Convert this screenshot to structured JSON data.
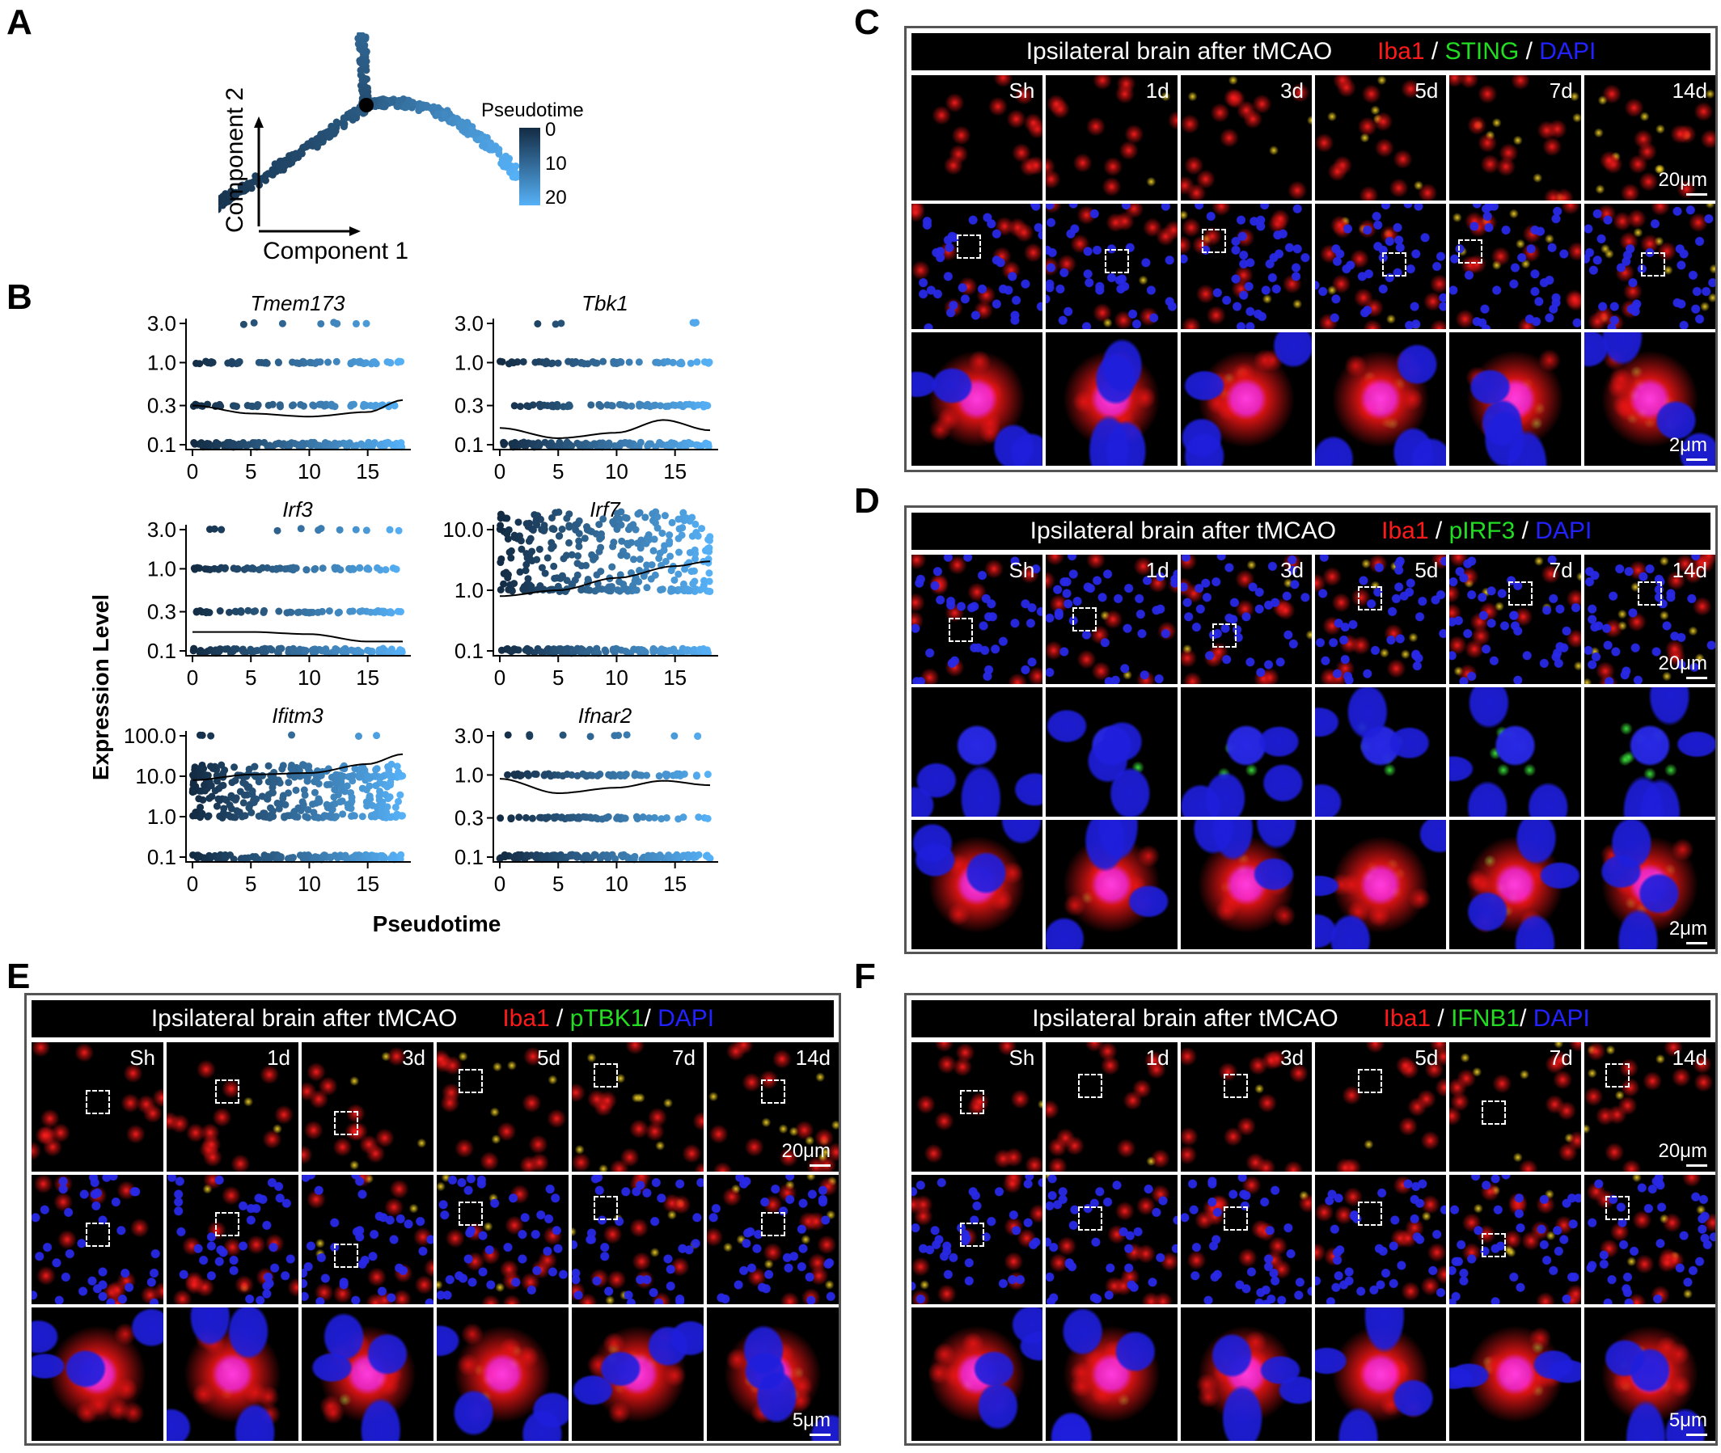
{
  "panel_letters": [
    "A",
    "B",
    "C",
    "D",
    "E",
    "F"
  ],
  "panelA": {
    "xlabel": "Component 1",
    "ylabel": "Component 2",
    "legend_title": "Pseudotime",
    "legend_ticks": [
      "0",
      "10",
      "20"
    ],
    "colors": {
      "dark": "#132b43",
      "light": "#56b1f7"
    }
  },
  "panelB": {
    "ylabel": "Expression Level",
    "xlabel": "Pseudotime",
    "x_ticks": [
      "0",
      "5",
      "10",
      "15"
    ]
  },
  "chart_data": [
    {
      "type": "scatter",
      "title": "Tmem173",
      "x_range": [
        0,
        18
      ],
      "y_scale": "log",
      "y_ticks": [
        "0.1",
        "0.3",
        "1.0",
        "3.0"
      ],
      "trend": [
        [
          0,
          0.3
        ],
        [
          5,
          0.24
        ],
        [
          10,
          0.22
        ],
        [
          15,
          0.25
        ],
        [
          18,
          0.35
        ]
      ]
    },
    {
      "type": "scatter",
      "title": "Tbk1",
      "x_range": [
        0,
        18
      ],
      "y_scale": "log",
      "y_ticks": [
        "0.1",
        "0.3",
        "1.0",
        "3.0"
      ],
      "trend": [
        [
          0,
          0.16
        ],
        [
          5,
          0.12
        ],
        [
          10,
          0.14
        ],
        [
          14,
          0.2
        ],
        [
          18,
          0.15
        ]
      ]
    },
    {
      "type": "scatter",
      "title": "Irf3",
      "x_range": [
        0,
        18
      ],
      "y_scale": "log",
      "y_ticks": [
        "0.1",
        "0.3",
        "1.0",
        "3.0"
      ],
      "trend": [
        [
          0,
          0.17
        ],
        [
          5,
          0.17
        ],
        [
          10,
          0.16
        ],
        [
          15,
          0.13
        ],
        [
          18,
          0.13
        ]
      ]
    },
    {
      "type": "scatter",
      "title": "Irf7",
      "x_range": [
        0,
        18
      ],
      "y_scale": "log",
      "y_ticks": [
        "0.1",
        "1.0",
        "10.0"
      ],
      "trend": [
        [
          0,
          0.8
        ],
        [
          5,
          1.0
        ],
        [
          10,
          1.6
        ],
        [
          15,
          2.5
        ],
        [
          18,
          3.0
        ]
      ]
    },
    {
      "type": "scatter",
      "title": "Ifitm3",
      "x_range": [
        0,
        18
      ],
      "y_scale": "log",
      "y_ticks": [
        "0.1",
        "1.0",
        "10.0",
        "100.0"
      ],
      "trend": [
        [
          0,
          8
        ],
        [
          5,
          11
        ],
        [
          10,
          12
        ],
        [
          15,
          20
        ],
        [
          18,
          35
        ]
      ]
    },
    {
      "type": "scatter",
      "title": "Ifnar2",
      "x_range": [
        0,
        18
      ],
      "y_scale": "log",
      "y_ticks": [
        "0.1",
        "0.3",
        "1.0",
        "3.0"
      ],
      "trend": [
        [
          0,
          0.9
        ],
        [
          5,
          0.6
        ],
        [
          10,
          0.7
        ],
        [
          14,
          0.85
        ],
        [
          18,
          0.75
        ]
      ]
    }
  ],
  "if_panels": [
    {
      "letter": "C",
      "title": "Ipsilateral brain after tMCAO",
      "marker_red": "Iba1",
      "sep1": " / ",
      "marker_green": "STING",
      "sep2": " / ",
      "marker_blue": "DAPI",
      "scale_top": "20μm",
      "scale_bottom": "2μm"
    },
    {
      "letter": "D",
      "title": "Ipsilateral brain after tMCAO",
      "marker_red": "Iba1",
      "sep1": " / ",
      "marker_green": "pIRF3",
      "sep2": " / ",
      "marker_blue": "DAPI",
      "scale_top": "20μm",
      "scale_bottom": "2μm"
    },
    {
      "letter": "E",
      "title": "Ipsilateral brain after tMCAO",
      "marker_red": "Iba1",
      "sep1": " / ",
      "marker_green": "pTBK1",
      "sep2": "/ ",
      "marker_blue": "DAPI",
      "scale_top": "20μm",
      "scale_bottom": "5μm"
    },
    {
      "letter": "F",
      "title": "Ipsilateral brain after tMCAO",
      "marker_red": "Iba1",
      "sep1": " / ",
      "marker_green": "IFNB1",
      "sep2": "/ ",
      "marker_blue": "DAPI",
      "scale_top": "20μm",
      "scale_bottom": "5μm"
    }
  ],
  "timepoints": [
    "Sh",
    "1d",
    "3d",
    "5d",
    "7d",
    "14d"
  ]
}
